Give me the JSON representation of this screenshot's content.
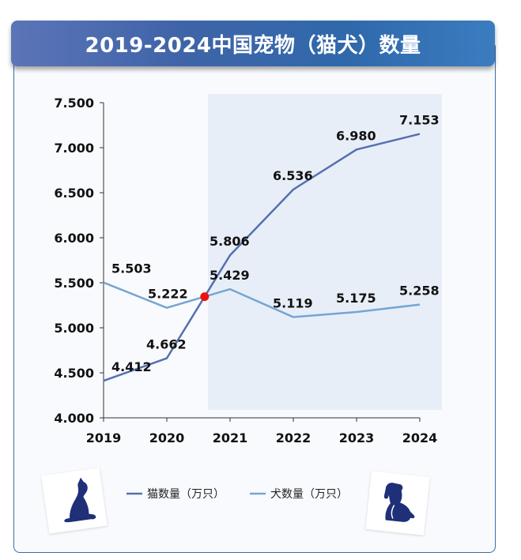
{
  "title": "2019-2024中国宠物（猫犬）数量",
  "colors": {
    "cat_line": "#5470b0",
    "dog_line": "#74a6d3",
    "highlight_bg": "#e8eef8",
    "marker": "#ee1111",
    "axis": "#333333"
  },
  "icons": {
    "cat": "cat-icon",
    "dog": "dog-icon"
  },
  "chart_data": {
    "type": "line",
    "categories": [
      "2019",
      "2020",
      "2021",
      "2022",
      "2023",
      "2024"
    ],
    "ylim": [
      4.0,
      7.5
    ],
    "y_ticks": [
      "4.000",
      "4.500",
      "5.000",
      "5.500",
      "6.000",
      "6.500",
      "7.000",
      "7.500"
    ],
    "grid": false,
    "legend_position": "bottom",
    "highlight_from": "2021",
    "series": [
      {
        "name": "猫数量（万只）",
        "values": [
          4.412,
          4.662,
          5.806,
          6.536,
          6.98,
          7.153
        ],
        "labels": [
          "4.412",
          "4.662",
          "5.806",
          "6.536",
          "6.980",
          "7.153"
        ]
      },
      {
        "name": "犬数量（万只）",
        "values": [
          5.503,
          5.222,
          5.429,
          5.119,
          5.175,
          5.258
        ],
        "labels": [
          "5.503",
          "5.222",
          "5.429",
          "5.119",
          "5.175",
          "5.258"
        ]
      }
    ]
  }
}
